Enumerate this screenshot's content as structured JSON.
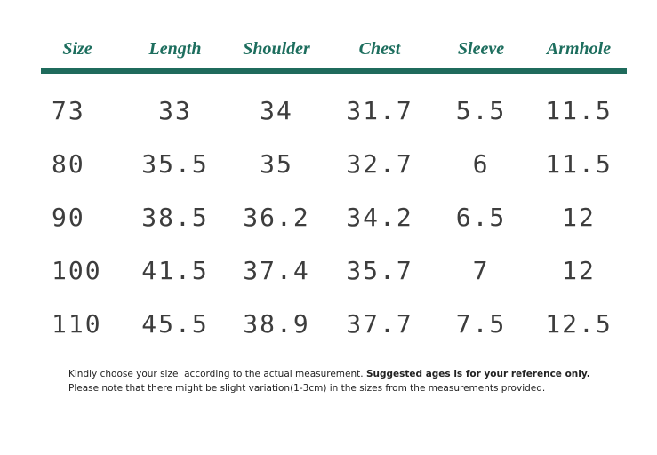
{
  "table": {
    "headers": [
      "Size",
      "Length",
      "Shoulder",
      "Chest",
      "Sleeve",
      "Armhole"
    ],
    "rows": [
      [
        "73",
        "33",
        "34",
        "31.7",
        "5.5",
        "11.5"
      ],
      [
        "80",
        "35.5",
        "35",
        "32.7",
        "6",
        "11.5"
      ],
      [
        "90",
        "38.5",
        "36.2",
        "34.2",
        "6.5",
        "12"
      ],
      [
        "100",
        "41.5",
        "37.4",
        "35.7",
        "7",
        "12"
      ],
      [
        "110",
        "45.5",
        "38.9",
        "37.7",
        "7.5",
        "12.5"
      ]
    ]
  },
  "notes": {
    "line1_regular": "Kindly choose your size  according to the actual measurement.",
    "line1_bold": "Suggested ages is for your reference only.",
    "line2": "Please note that there might be slight variation(1-3cm) in the sizes from the measurements provided."
  }
}
